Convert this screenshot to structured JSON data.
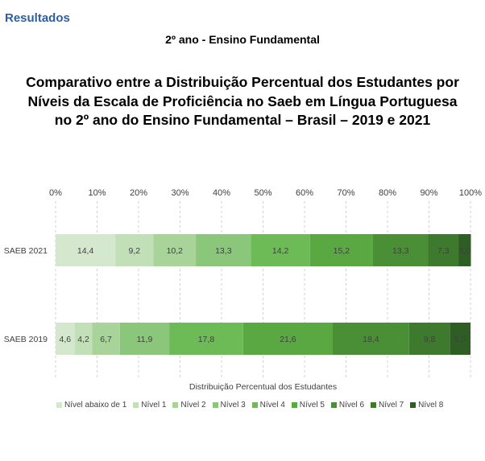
{
  "header": {
    "section": "Resultados",
    "subtitle": "2º ano - Ensino Fundamental",
    "title": "Comparativo entre a Distribuição Percentual dos Estudantes por Níveis da Escala de Proficiência no Saeb em Língua Portuguesa no 2º ano do Ensino Fundamental – Brasil – 2019 e 2021"
  },
  "chart_data": {
    "type": "bar",
    "orientation": "horizontal",
    "stacked": true,
    "categories": [
      "SAEB 2021",
      "SAEB 2019"
    ],
    "series": [
      {
        "name": "Nível abaixo de 1",
        "color": "#d4e8cd",
        "values": [
          14.4,
          4.6
        ]
      },
      {
        "name": "Nível 1",
        "color": "#c2e0b7",
        "values": [
          9.2,
          4.2
        ]
      },
      {
        "name": "Nível 2",
        "color": "#a8d49a",
        "values": [
          10.2,
          6.7
        ]
      },
      {
        "name": "Nível 3",
        "color": "#8ac77a",
        "values": [
          13.3,
          11.9
        ]
      },
      {
        "name": "Nível 4",
        "color": "#6dbb56",
        "values": [
          14.2,
          17.8
        ]
      },
      {
        "name": "Nível 5",
        "color": "#5aa842",
        "values": [
          15.2,
          21.6
        ]
      },
      {
        "name": "Nível 6",
        "color": "#4a8f36",
        "values": [
          13.3,
          18.4
        ]
      },
      {
        "name": "Nível 7",
        "color": "#3d7a2e",
        "values": [
          7.3,
          9.8
        ]
      },
      {
        "name": "Nível 8",
        "color": "#2e5e24",
        "values": [
          3.0,
          5.0
        ]
      }
    ],
    "value_labels": [
      [
        "14,4",
        "9,2",
        "10,2",
        "13,3",
        "14,2",
        "15,2",
        "13,3",
        "7,3",
        "3,0"
      ],
      [
        "4,6",
        "4,2",
        "6,7",
        "11,9",
        "17,8",
        "21,6",
        "18,4",
        "9,8",
        "5,0"
      ]
    ],
    "x_ticks": [
      "0%",
      "10%",
      "20%",
      "30%",
      "40%",
      "50%",
      "60%",
      "70%",
      "80%",
      "90%",
      "100%"
    ],
    "xlabel": "Distribuição Percentual dos Estudantes",
    "ylabel": "",
    "xlim": [
      0,
      100
    ],
    "grid": true,
    "gridlines_dashed": true,
    "legend_position": "bottom"
  }
}
